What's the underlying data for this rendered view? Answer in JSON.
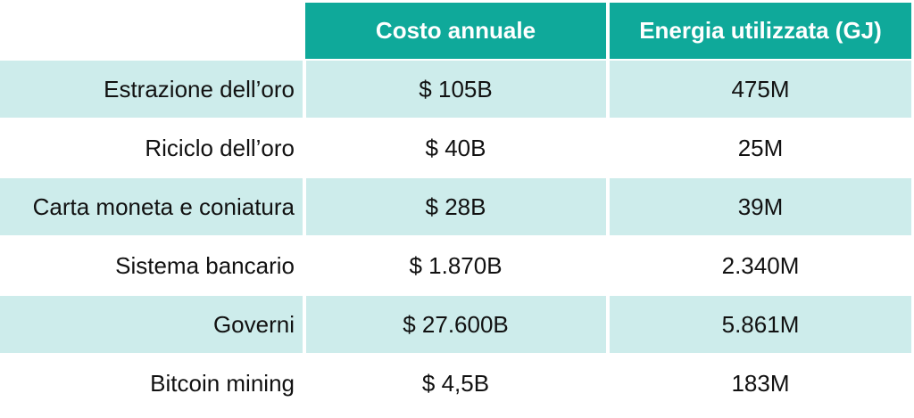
{
  "colors": {
    "header_bg": "#0fa99a",
    "band_bg": "#cdeceb",
    "plain_bg": "#ffffff",
    "header_text": "#ffffff",
    "body_text": "#111111"
  },
  "chart_data": {
    "type": "table",
    "columns": [
      "",
      "Costo annuale",
      "Energia utilizzata (GJ)"
    ],
    "rows": [
      [
        "Estrazione dell’oro",
        "$ 105B",
        "475M"
      ],
      [
        "Riciclo dell’oro",
        "$ 40B",
        "25M"
      ],
      [
        "Carta moneta e coniatura",
        "$ 28B",
        "39M"
      ],
      [
        "Sistema bancario",
        "$ 1.870B",
        "2.340M"
      ],
      [
        "Governi",
        "$ 27.600B",
        "5.861M"
      ],
      [
        "Bitcoin mining",
        "$ 4,5B",
        "183M"
      ]
    ]
  }
}
